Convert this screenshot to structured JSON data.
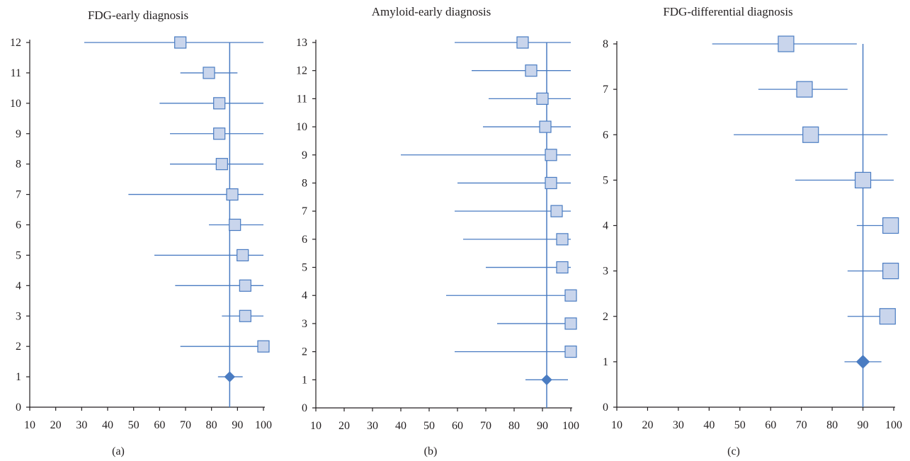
{
  "colors": {
    "line": "#4a7cc2",
    "square_fill": "#c9d5ec",
    "square_stroke": "#4a7cc2",
    "diamond_fill": "#4a7cc2",
    "axis": "#231f20"
  },
  "chart_data": [
    {
      "type": "forest",
      "title": "FDG-early diagnosis",
      "panel_label": "(a)",
      "xlim": [
        10,
        100
      ],
      "xticks": [
        10,
        20,
        30,
        40,
        50,
        60,
        70,
        80,
        90,
        100
      ],
      "ylim": [
        0,
        12
      ],
      "yticks": [
        0,
        1,
        2,
        3,
        4,
        5,
        6,
        7,
        8,
        9,
        10,
        11,
        12
      ],
      "reference_x": 87,
      "pooled": {
        "y": 1,
        "x": 87,
        "lo": 82.5,
        "hi": 92
      },
      "studies": [
        {
          "y": 12,
          "x": 68,
          "lo": 31,
          "hi": 100
        },
        {
          "y": 11,
          "x": 79,
          "lo": 68,
          "hi": 90
        },
        {
          "y": 10,
          "x": 83,
          "lo": 60,
          "hi": 100
        },
        {
          "y": 9,
          "x": 83,
          "lo": 64,
          "hi": 100
        },
        {
          "y": 8,
          "x": 84,
          "lo": 64,
          "hi": 100
        },
        {
          "y": 7,
          "x": 88,
          "lo": 48,
          "hi": 100
        },
        {
          "y": 6,
          "x": 89,
          "lo": 79,
          "hi": 100
        },
        {
          "y": 5,
          "x": 92,
          "lo": 58,
          "hi": 100
        },
        {
          "y": 4,
          "x": 93,
          "lo": 66,
          "hi": 100
        },
        {
          "y": 3,
          "x": 93,
          "lo": 84,
          "hi": 100
        },
        {
          "y": 2,
          "x": 100,
          "lo": 68,
          "hi": 100
        }
      ]
    },
    {
      "type": "forest",
      "title": "Amyloid-early diagnosis",
      "panel_label": "(b)",
      "xlim": [
        10,
        100
      ],
      "xticks": [
        10,
        20,
        30,
        40,
        50,
        60,
        70,
        80,
        90,
        100
      ],
      "ylim": [
        0,
        13
      ],
      "yticks": [
        0,
        1,
        2,
        3,
        4,
        5,
        6,
        7,
        8,
        9,
        10,
        11,
        12,
        13
      ],
      "reference_x": 91.5,
      "pooled": {
        "y": 1,
        "x": 91.5,
        "lo": 84,
        "hi": 99
      },
      "studies": [
        {
          "y": 13,
          "x": 83,
          "lo": 59,
          "hi": 100
        },
        {
          "y": 12,
          "x": 86,
          "lo": 65,
          "hi": 100
        },
        {
          "y": 11,
          "x": 90,
          "lo": 71,
          "hi": 100
        },
        {
          "y": 10,
          "x": 91,
          "lo": 69,
          "hi": 100
        },
        {
          "y": 9,
          "x": 93,
          "lo": 40,
          "hi": 100
        },
        {
          "y": 8,
          "x": 93,
          "lo": 60,
          "hi": 100
        },
        {
          "y": 7,
          "x": 95,
          "lo": 59,
          "hi": 100
        },
        {
          "y": 6,
          "x": 97,
          "lo": 62,
          "hi": 100
        },
        {
          "y": 5,
          "x": 97,
          "lo": 70,
          "hi": 100
        },
        {
          "y": 4,
          "x": 100,
          "lo": 56,
          "hi": 100
        },
        {
          "y": 3,
          "x": 100,
          "lo": 74,
          "hi": 100
        },
        {
          "y": 2,
          "x": 100,
          "lo": 59,
          "hi": 100
        }
      ]
    },
    {
      "type": "forest",
      "title": "FDG-differential diagnosis",
      "panel_label": "(c)",
      "xlim": [
        10,
        100
      ],
      "xticks": [
        10,
        20,
        30,
        40,
        50,
        60,
        70,
        80,
        90,
        100
      ],
      "ylim": [
        0,
        8
      ],
      "yticks": [
        0,
        1,
        2,
        3,
        4,
        5,
        6,
        7,
        8
      ],
      "reference_x": 90,
      "pooled": {
        "y": 1,
        "x": 90,
        "lo": 84,
        "hi": 96
      },
      "studies": [
        {
          "y": 8,
          "x": 65,
          "lo": 41,
          "hi": 88
        },
        {
          "y": 7,
          "x": 71,
          "lo": 56,
          "hi": 85
        },
        {
          "y": 6,
          "x": 73,
          "lo": 48,
          "hi": 98
        },
        {
          "y": 5,
          "x": 90,
          "lo": 68,
          "hi": 100
        },
        {
          "y": 4,
          "x": 99,
          "lo": 88,
          "hi": 100
        },
        {
          "y": 3,
          "x": 99,
          "lo": 85,
          "hi": 100
        },
        {
          "y": 2,
          "x": 98,
          "lo": 85,
          "hi": 100
        }
      ]
    }
  ]
}
